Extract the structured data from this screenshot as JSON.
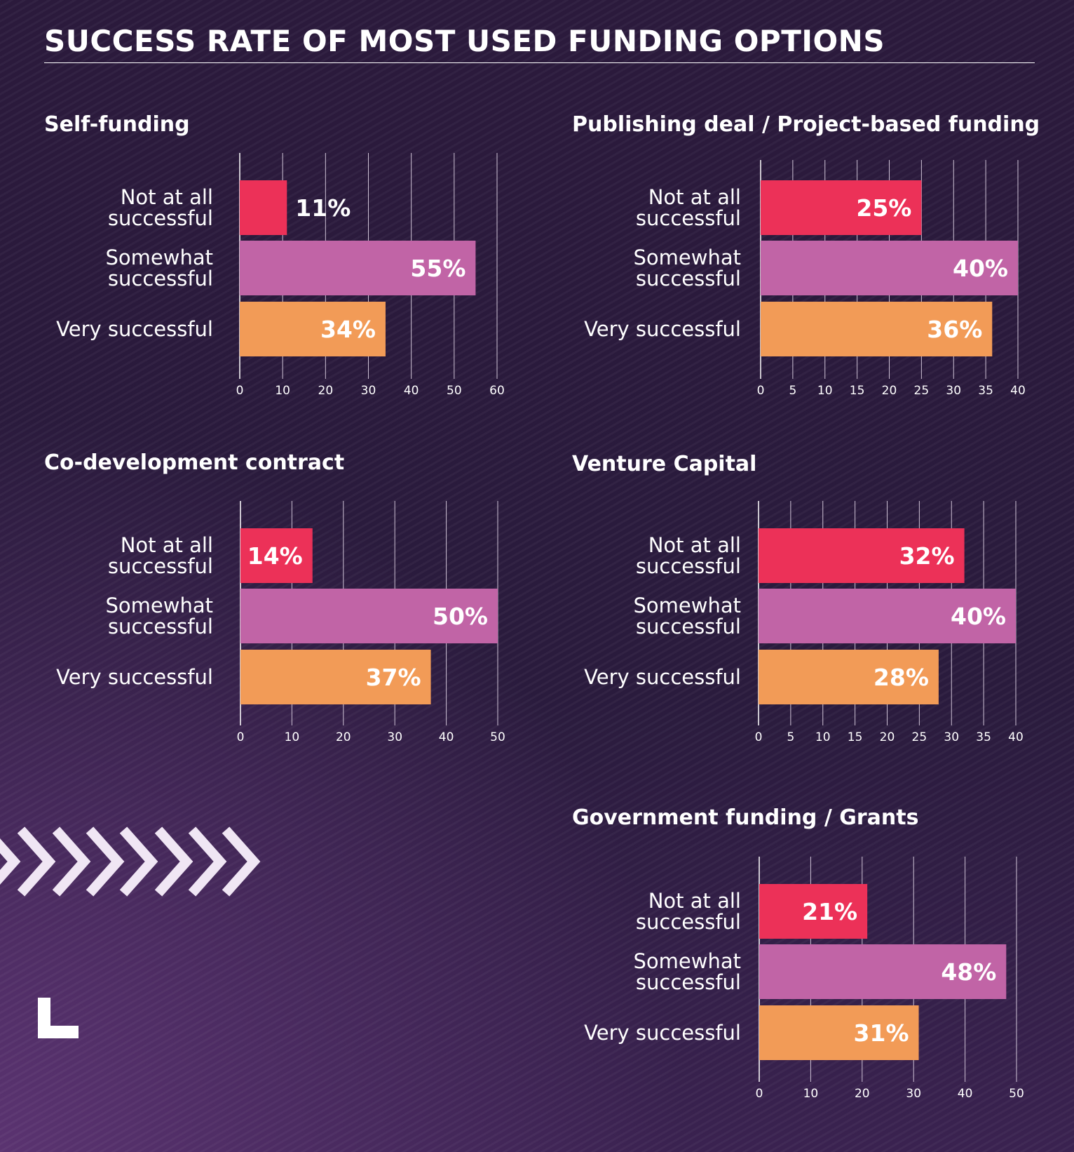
{
  "title": "SUCCESS RATE OF MOST USED FUNDING OPTIONS",
  "colors": {
    "not_at_all": "#ec3158",
    "somewhat": "#c164a6",
    "very": "#f29b57",
    "grid": "#cfc3d6"
  },
  "icons": [
    "chevrons-right-icon",
    "logo-corner-icon"
  ],
  "chart_data": [
    {
      "type": "bar",
      "orientation": "horizontal",
      "title": "Self-funding",
      "categories": [
        "Not at all successful",
        "Somewhat successful",
        "Very successful"
      ],
      "category_lines": [
        [
          "Not at all",
          "successful"
        ],
        [
          "Somewhat",
          "successful"
        ],
        [
          "Very successful"
        ]
      ],
      "values": [
        11,
        55,
        34
      ],
      "value_labels": [
        "11%",
        "55%",
        "34%"
      ],
      "xlim": [
        0,
        60
      ],
      "ticks": [
        0,
        10,
        20,
        30,
        40,
        50,
        60
      ],
      "grid": true
    },
    {
      "type": "bar",
      "orientation": "horizontal",
      "title": "Publishing deal / Project-based funding",
      "categories": [
        "Not at all successful",
        "Somewhat successful",
        "Very successful"
      ],
      "category_lines": [
        [
          "Not at all",
          "successful"
        ],
        [
          "Somewhat",
          "successful"
        ],
        [
          "Very successful"
        ]
      ],
      "values": [
        25,
        40,
        36
      ],
      "value_labels": [
        "25%",
        "40%",
        "36%"
      ],
      "xlim": [
        0,
        40
      ],
      "ticks": [
        0,
        5,
        10,
        15,
        20,
        25,
        30,
        35,
        40
      ],
      "grid": true
    },
    {
      "type": "bar",
      "orientation": "horizontal",
      "title": "Co-development contract",
      "categories": [
        "Not at all successful",
        "Somewhat successful",
        "Very successful"
      ],
      "category_lines": [
        [
          "Not at all",
          "successful"
        ],
        [
          "Somewhat",
          "successful"
        ],
        [
          "Very successful"
        ]
      ],
      "values": [
        14,
        50,
        37
      ],
      "value_labels": [
        "14%",
        "50%",
        "37%"
      ],
      "xlim": [
        0,
        50
      ],
      "ticks": [
        0,
        10,
        20,
        30,
        40,
        50
      ],
      "grid": true
    },
    {
      "type": "bar",
      "orientation": "horizontal",
      "title": "Venture Capital",
      "categories": [
        "Not at all successful",
        "Somewhat successful",
        "Very successful"
      ],
      "category_lines": [
        [
          "Not at all",
          "successful"
        ],
        [
          "Somewhat",
          "successful"
        ],
        [
          "Very successful"
        ]
      ],
      "values": [
        32,
        40,
        28
      ],
      "value_labels": [
        "32%",
        "40%",
        "28%"
      ],
      "xlim": [
        0,
        40
      ],
      "ticks": [
        0,
        5,
        10,
        15,
        20,
        25,
        30,
        35,
        40
      ],
      "grid": true
    },
    {
      "type": "bar",
      "orientation": "horizontal",
      "title": "Government funding / Grants",
      "categories": [
        "Not at all successful",
        "Somewhat successful",
        "Very successful"
      ],
      "category_lines": [
        [
          "Not at all",
          "successful"
        ],
        [
          "Somewhat",
          "successful"
        ],
        [
          "Very successful"
        ]
      ],
      "values": [
        21,
        48,
        31
      ],
      "value_labels": [
        "21%",
        "48%",
        "31%"
      ],
      "xlim": [
        0,
        50
      ],
      "ticks": [
        0,
        10,
        20,
        30,
        40,
        50
      ],
      "grid": true
    }
  ]
}
